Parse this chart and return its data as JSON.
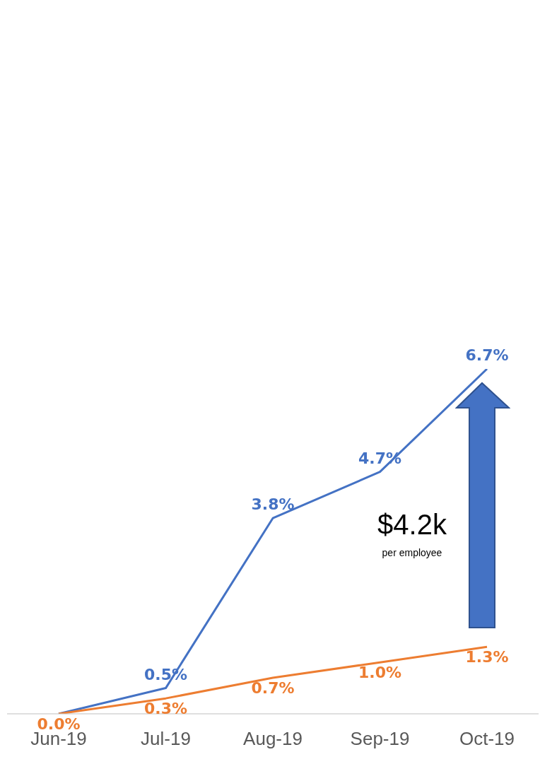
{
  "chart_data": {
    "type": "line",
    "categories": [
      "Jun-19",
      "Jul-19",
      "Aug-19",
      "Sep-19",
      "Oct-19"
    ],
    "series": [
      {
        "color": "#4472c4",
        "values": [
          0.0,
          0.5,
          3.8,
          4.7,
          6.7
        ],
        "value_labels": [
          null,
          "0.5%",
          "3.8%",
          "4.7%",
          "6.7%"
        ]
      },
      {
        "color": "#ed7d31",
        "values": [
          0.0,
          0.3,
          0.7,
          1.0,
          1.3
        ],
        "value_labels": [
          "0.0%",
          "0.3%",
          "0.7%",
          "1.0%",
          "1.3%"
        ]
      }
    ],
    "marker": "none",
    "line_style": "solid",
    "annotations": [
      "$4.2k",
      "per employee"
    ]
  }
}
